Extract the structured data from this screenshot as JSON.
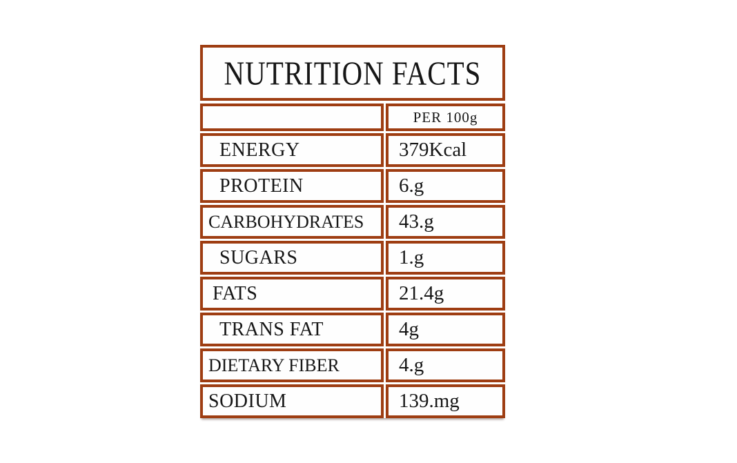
{
  "label": {
    "title": "NUTRITION FACTS",
    "border_color": "#9E3D12",
    "text_color": "#161616",
    "header": {
      "amount_column": "PER 100g"
    },
    "rows": [
      {
        "label": "ENERGY",
        "value": "379Kcal"
      },
      {
        "label": "PROTEIN",
        "value": "6.g"
      },
      {
        "label": "CARBOHYDRATES",
        "value": "43.g"
      },
      {
        "label": "SUGARS",
        "value": "1.g"
      },
      {
        "label": "FATS",
        "value": "21.4g"
      },
      {
        "label": "TRANS FAT",
        "value": "4g"
      },
      {
        "label": "DIETARY FIBER",
        "value": "4.g"
      },
      {
        "label": "SODIUM",
        "value": "139.mg"
      }
    ]
  }
}
